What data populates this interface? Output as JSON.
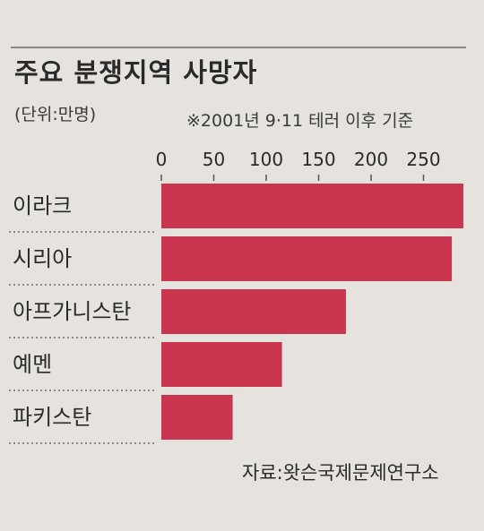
{
  "title": "주요 분쟁지역 사망자",
  "unit_note": "(단위:만명)",
  "footnote": "※2001년 9·11 테러 이후 기준",
  "source": "자료:왓슨국제문제연구소",
  "colors": {
    "bar": "#c9344f",
    "text": "#2a2a2a",
    "dotted": "#555555"
  },
  "chart_data": {
    "type": "bar",
    "orientation": "horizontal",
    "categories": [
      "이라크",
      "시리아",
      "아프가니스탄",
      "예멘",
      "파키스탄"
    ],
    "values": [
      288,
      277,
      176,
      115,
      68
    ],
    "xlim": [
      0,
      300
    ],
    "xticks": [
      0,
      50,
      100,
      150,
      200,
      250
    ],
    "xaxis_position": "top",
    "grid": false,
    "title": "주요 분쟁지역 사망자"
  }
}
